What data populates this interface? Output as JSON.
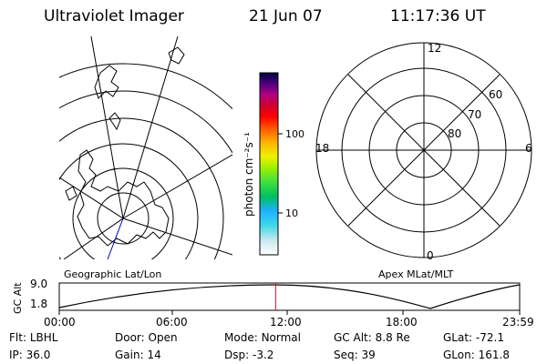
{
  "header": {
    "instrument": "Ultraviolet Imager",
    "date": "21 Jun 07",
    "time": "11:17:36 UT"
  },
  "colorbar": {
    "unit_label": "photon cm⁻²s⁻¹",
    "ticks": [
      "100",
      "10"
    ]
  },
  "polar_plot": {
    "lat_labels": [
      "60",
      "70",
      "80"
    ],
    "mlt_labels": [
      "12",
      "18",
      "6",
      "0"
    ]
  },
  "map_plot": {
    "label": "Geographic Lat/Lon"
  },
  "timeline": {
    "left_label": "Geographic Lat/Lon",
    "right_label": "Apex MLat/MLT",
    "yaxis_label": "GC Alt",
    "y_ticks": [
      "9.0",
      "1.8"
    ],
    "x_ticks": [
      "00:00",
      "06:00",
      "12:00",
      "18:00",
      "23:59"
    ],
    "current_time_fraction": 0.47
  },
  "status": {
    "row1": [
      {
        "key": "Flt:",
        "value": "LBHL"
      },
      {
        "key": "Door:",
        "value": "Open"
      },
      {
        "key": "Mode:",
        "value": "Normal"
      },
      {
        "key": "GC Alt:",
        "value": "8.8 Re"
      },
      {
        "key": "GLat:",
        "value": "-72.1"
      }
    ],
    "row2": [
      {
        "key": "IP:",
        "value": "36.0"
      },
      {
        "key": "Gain:",
        "value": "14"
      },
      {
        "key": "Dsp:",
        "value": "-3.2"
      },
      {
        "key": "Seq:",
        "value": "39"
      },
      {
        "key": "GLon:",
        "value": "161.8"
      }
    ]
  },
  "colors": {
    "marker": "#ff0000",
    "track": "#0000cc"
  }
}
